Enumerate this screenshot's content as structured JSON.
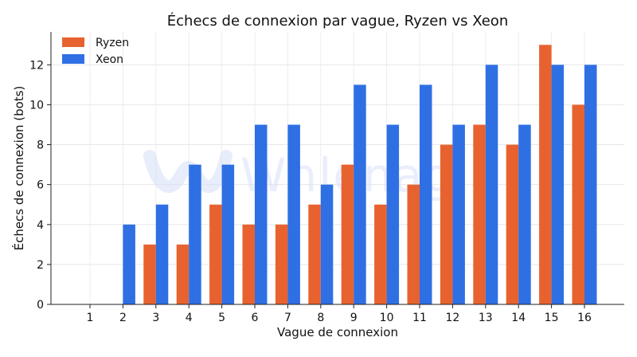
{
  "chart_data": {
    "type": "bar",
    "title": "Échecs de connexion par vague, Ryzen vs Xeon",
    "xlabel": "Vague de connexion",
    "ylabel": "Échecs de connexion (bots)",
    "categories": [
      "1",
      "2",
      "3",
      "4",
      "5",
      "6",
      "7",
      "8",
      "9",
      "10",
      "11",
      "12",
      "13",
      "14",
      "15",
      "16"
    ],
    "series": [
      {
        "name": "Ryzen",
        "color": "#e8622f",
        "values": [
          0,
          0,
          3,
          3,
          5,
          4,
          4,
          5,
          7,
          5,
          6,
          8,
          9,
          8,
          13,
          10
        ]
      },
      {
        "name": "Xeon",
        "color": "#2f6fe4",
        "values": [
          0,
          4,
          5,
          7,
          7,
          9,
          9,
          6,
          11,
          9,
          11,
          9,
          12,
          9,
          12,
          12
        ]
      }
    ],
    "ylim": [
      0,
      13.65
    ],
    "yticks": [
      0,
      2,
      4,
      6,
      8,
      10,
      12
    ],
    "grid": true,
    "legend_position": "top-left"
  },
  "watermark": {
    "text": "Wnlenag"
  }
}
